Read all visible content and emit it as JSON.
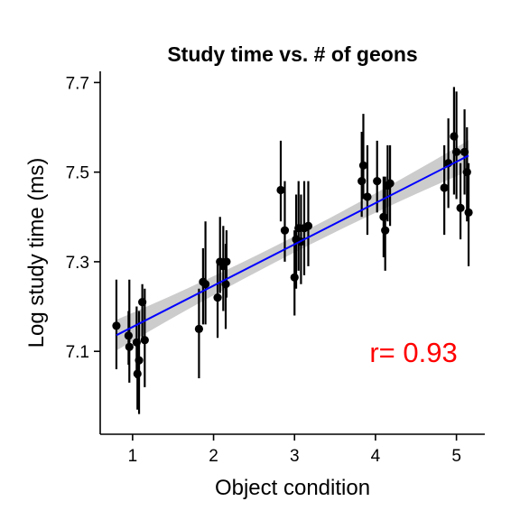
{
  "chart_data": {
    "type": "scatter",
    "title": "Study time vs. # of geons",
    "xlabel": "Object condition",
    "ylabel": "Log study time (ms)",
    "xlim": [
      0.6,
      5.35
    ],
    "ylim": [
      6.915,
      7.725
    ],
    "x_ticks": [
      1,
      2,
      3,
      4,
      5
    ],
    "y_ticks": [
      7.1,
      7.3,
      7.5,
      7.7
    ],
    "x_tick_labels": [
      "1",
      "2",
      "3",
      "4",
      "5"
    ],
    "y_tick_labels": [
      "7.1",
      "7.3",
      "7.5",
      "7.7"
    ],
    "grid": false,
    "annotation": {
      "text": "r= 0.93",
      "color": "#ff0000"
    },
    "colors": {
      "points": "#000000",
      "fit_line": "#0000ff",
      "ci_band": "#cccccc"
    },
    "fit": {
      "x0": 0.8,
      "y0": 7.136,
      "x1": 5.15,
      "y1": 7.537,
      "ci_half_width": 0.018
    },
    "points": [
      {
        "x": 0.8,
        "y": 7.157,
        "lo": 7.06,
        "hi": 7.26
      },
      {
        "x": 0.95,
        "y": 7.135,
        "lo": 7.07,
        "hi": 7.19
      },
      {
        "x": 0.96,
        "y": 7.11,
        "lo": 7.03,
        "hi": 7.26
      },
      {
        "x": 1.05,
        "y": 7.12,
        "lo": 7.04,
        "hi": 7.2
      },
      {
        "x": 1.06,
        "y": 7.05,
        "lo": 6.97,
        "hi": 7.12
      },
      {
        "x": 1.08,
        "y": 7.08,
        "lo": 6.96,
        "hi": 7.19
      },
      {
        "x": 1.12,
        "y": 7.21,
        "lo": 7.12,
        "hi": 7.25
      },
      {
        "x": 1.15,
        "y": 7.125,
        "lo": 7.02,
        "hi": 7.24
      },
      {
        "x": 1.82,
        "y": 7.15,
        "lo": 7.04,
        "hi": 7.24
      },
      {
        "x": 1.87,
        "y": 7.255,
        "lo": 7.16,
        "hi": 7.33
      },
      {
        "x": 1.9,
        "y": 7.25,
        "lo": 7.16,
        "hi": 7.39
      },
      {
        "x": 2.05,
        "y": 7.22,
        "lo": 7.13,
        "hi": 7.3
      },
      {
        "x": 2.08,
        "y": 7.3,
        "lo": 7.23,
        "hi": 7.4
      },
      {
        "x": 2.12,
        "y": 7.29,
        "lo": 7.19,
        "hi": 7.38
      },
      {
        "x": 2.15,
        "y": 7.25,
        "lo": 7.15,
        "hi": 7.34
      },
      {
        "x": 2.16,
        "y": 7.3,
        "lo": 7.22,
        "hi": 7.37
      },
      {
        "x": 2.83,
        "y": 7.46,
        "lo": 7.39,
        "hi": 7.57
      },
      {
        "x": 2.88,
        "y": 7.37,
        "lo": 7.3,
        "hi": 7.48
      },
      {
        "x": 3.0,
        "y": 7.265,
        "lo": 7.18,
        "hi": 7.37
      },
      {
        "x": 3.02,
        "y": 7.35,
        "lo": 7.24,
        "hi": 7.45
      },
      {
        "x": 3.05,
        "y": 7.375,
        "lo": 7.28,
        "hi": 7.48
      },
      {
        "x": 3.08,
        "y": 7.345,
        "lo": 7.25,
        "hi": 7.45
      },
      {
        "x": 3.12,
        "y": 7.375,
        "lo": 7.27,
        "hi": 7.48
      },
      {
        "x": 3.17,
        "y": 7.38,
        "lo": 7.29,
        "hi": 7.48
      },
      {
        "x": 3.83,
        "y": 7.48,
        "lo": 7.4,
        "hi": 7.59
      },
      {
        "x": 3.85,
        "y": 7.515,
        "lo": 7.44,
        "hi": 7.63
      },
      {
        "x": 3.9,
        "y": 7.445,
        "lo": 7.36,
        "hi": 7.56
      },
      {
        "x": 4.02,
        "y": 7.48,
        "lo": 7.41,
        "hi": 7.57
      },
      {
        "x": 4.1,
        "y": 7.4,
        "lo": 7.31,
        "hi": 7.49
      },
      {
        "x": 4.12,
        "y": 7.37,
        "lo": 7.28,
        "hi": 7.49
      },
      {
        "x": 4.15,
        "y": 7.47,
        "lo": 7.39,
        "hi": 7.56
      },
      {
        "x": 4.18,
        "y": 7.475,
        "lo": 7.38,
        "hi": 7.56
      },
      {
        "x": 4.85,
        "y": 7.465,
        "lo": 7.36,
        "hi": 7.56
      },
      {
        "x": 4.9,
        "y": 7.52,
        "lo": 7.42,
        "hi": 7.62
      },
      {
        "x": 4.97,
        "y": 7.58,
        "lo": 7.45,
        "hi": 7.69
      },
      {
        "x": 5.0,
        "y": 7.545,
        "lo": 7.44,
        "hi": 7.68
      },
      {
        "x": 5.05,
        "y": 7.42,
        "lo": 7.35,
        "hi": 7.52
      },
      {
        "x": 5.1,
        "y": 7.545,
        "lo": 7.45,
        "hi": 7.64
      },
      {
        "x": 5.13,
        "y": 7.5,
        "lo": 7.39,
        "hi": 7.6
      },
      {
        "x": 5.15,
        "y": 7.41,
        "lo": 7.29,
        "hi": 7.52
      }
    ]
  }
}
